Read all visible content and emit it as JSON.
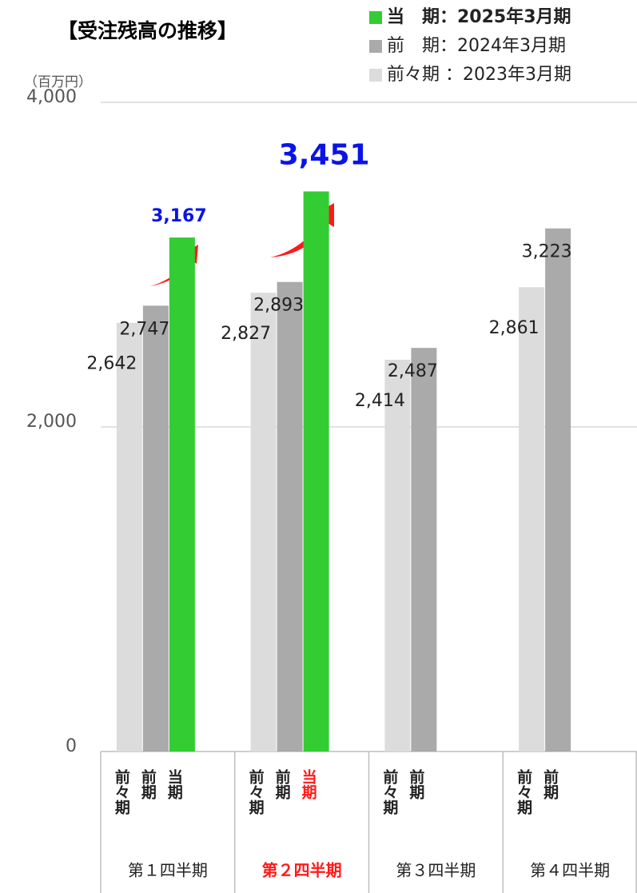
{
  "chart_data": {
    "type": "bar",
    "title": "【受注残高の推移】",
    "y_unit": "（百万円）",
    "categories": [
      "第１四半期",
      "第２四半期",
      "第３四半期",
      "第４四半期"
    ],
    "bar_labels": [
      "前々期",
      "前期",
      "当期"
    ],
    "series": [
      {
        "name": "前々期 ：2023年3月期",
        "color": "#dcdcdc",
        "values": [
          2642,
          2827,
          2414,
          2861
        ],
        "value_labels": [
          "2,642",
          "2,827",
          "2,414",
          "2,861"
        ]
      },
      {
        "name": "前　期：2024年3月期",
        "color": "#aaaaaa",
        "values": [
          2747,
          2893,
          2487,
          3223
        ],
        "value_labels": [
          "2,747",
          "2,893",
          "2,487",
          "3,223"
        ]
      },
      {
        "name": "当　期：2025年3月期",
        "color": "#33cc33",
        "values": [
          3167,
          3451,
          null,
          null
        ],
        "value_labels": [
          "3,167",
          "3,451",
          null,
          null
        ],
        "label_color": "#0a14e6"
      }
    ],
    "ylim": [
      0,
      4000
    ],
    "yticks": [
      0,
      {
        "value": 2000,
        "label": "2,000"
      },
      {
        "value": 4000,
        "label": "4,000"
      }
    ],
    "grid": true,
    "highlight_category": 1,
    "highlight_color": "#ff1a1a"
  }
}
